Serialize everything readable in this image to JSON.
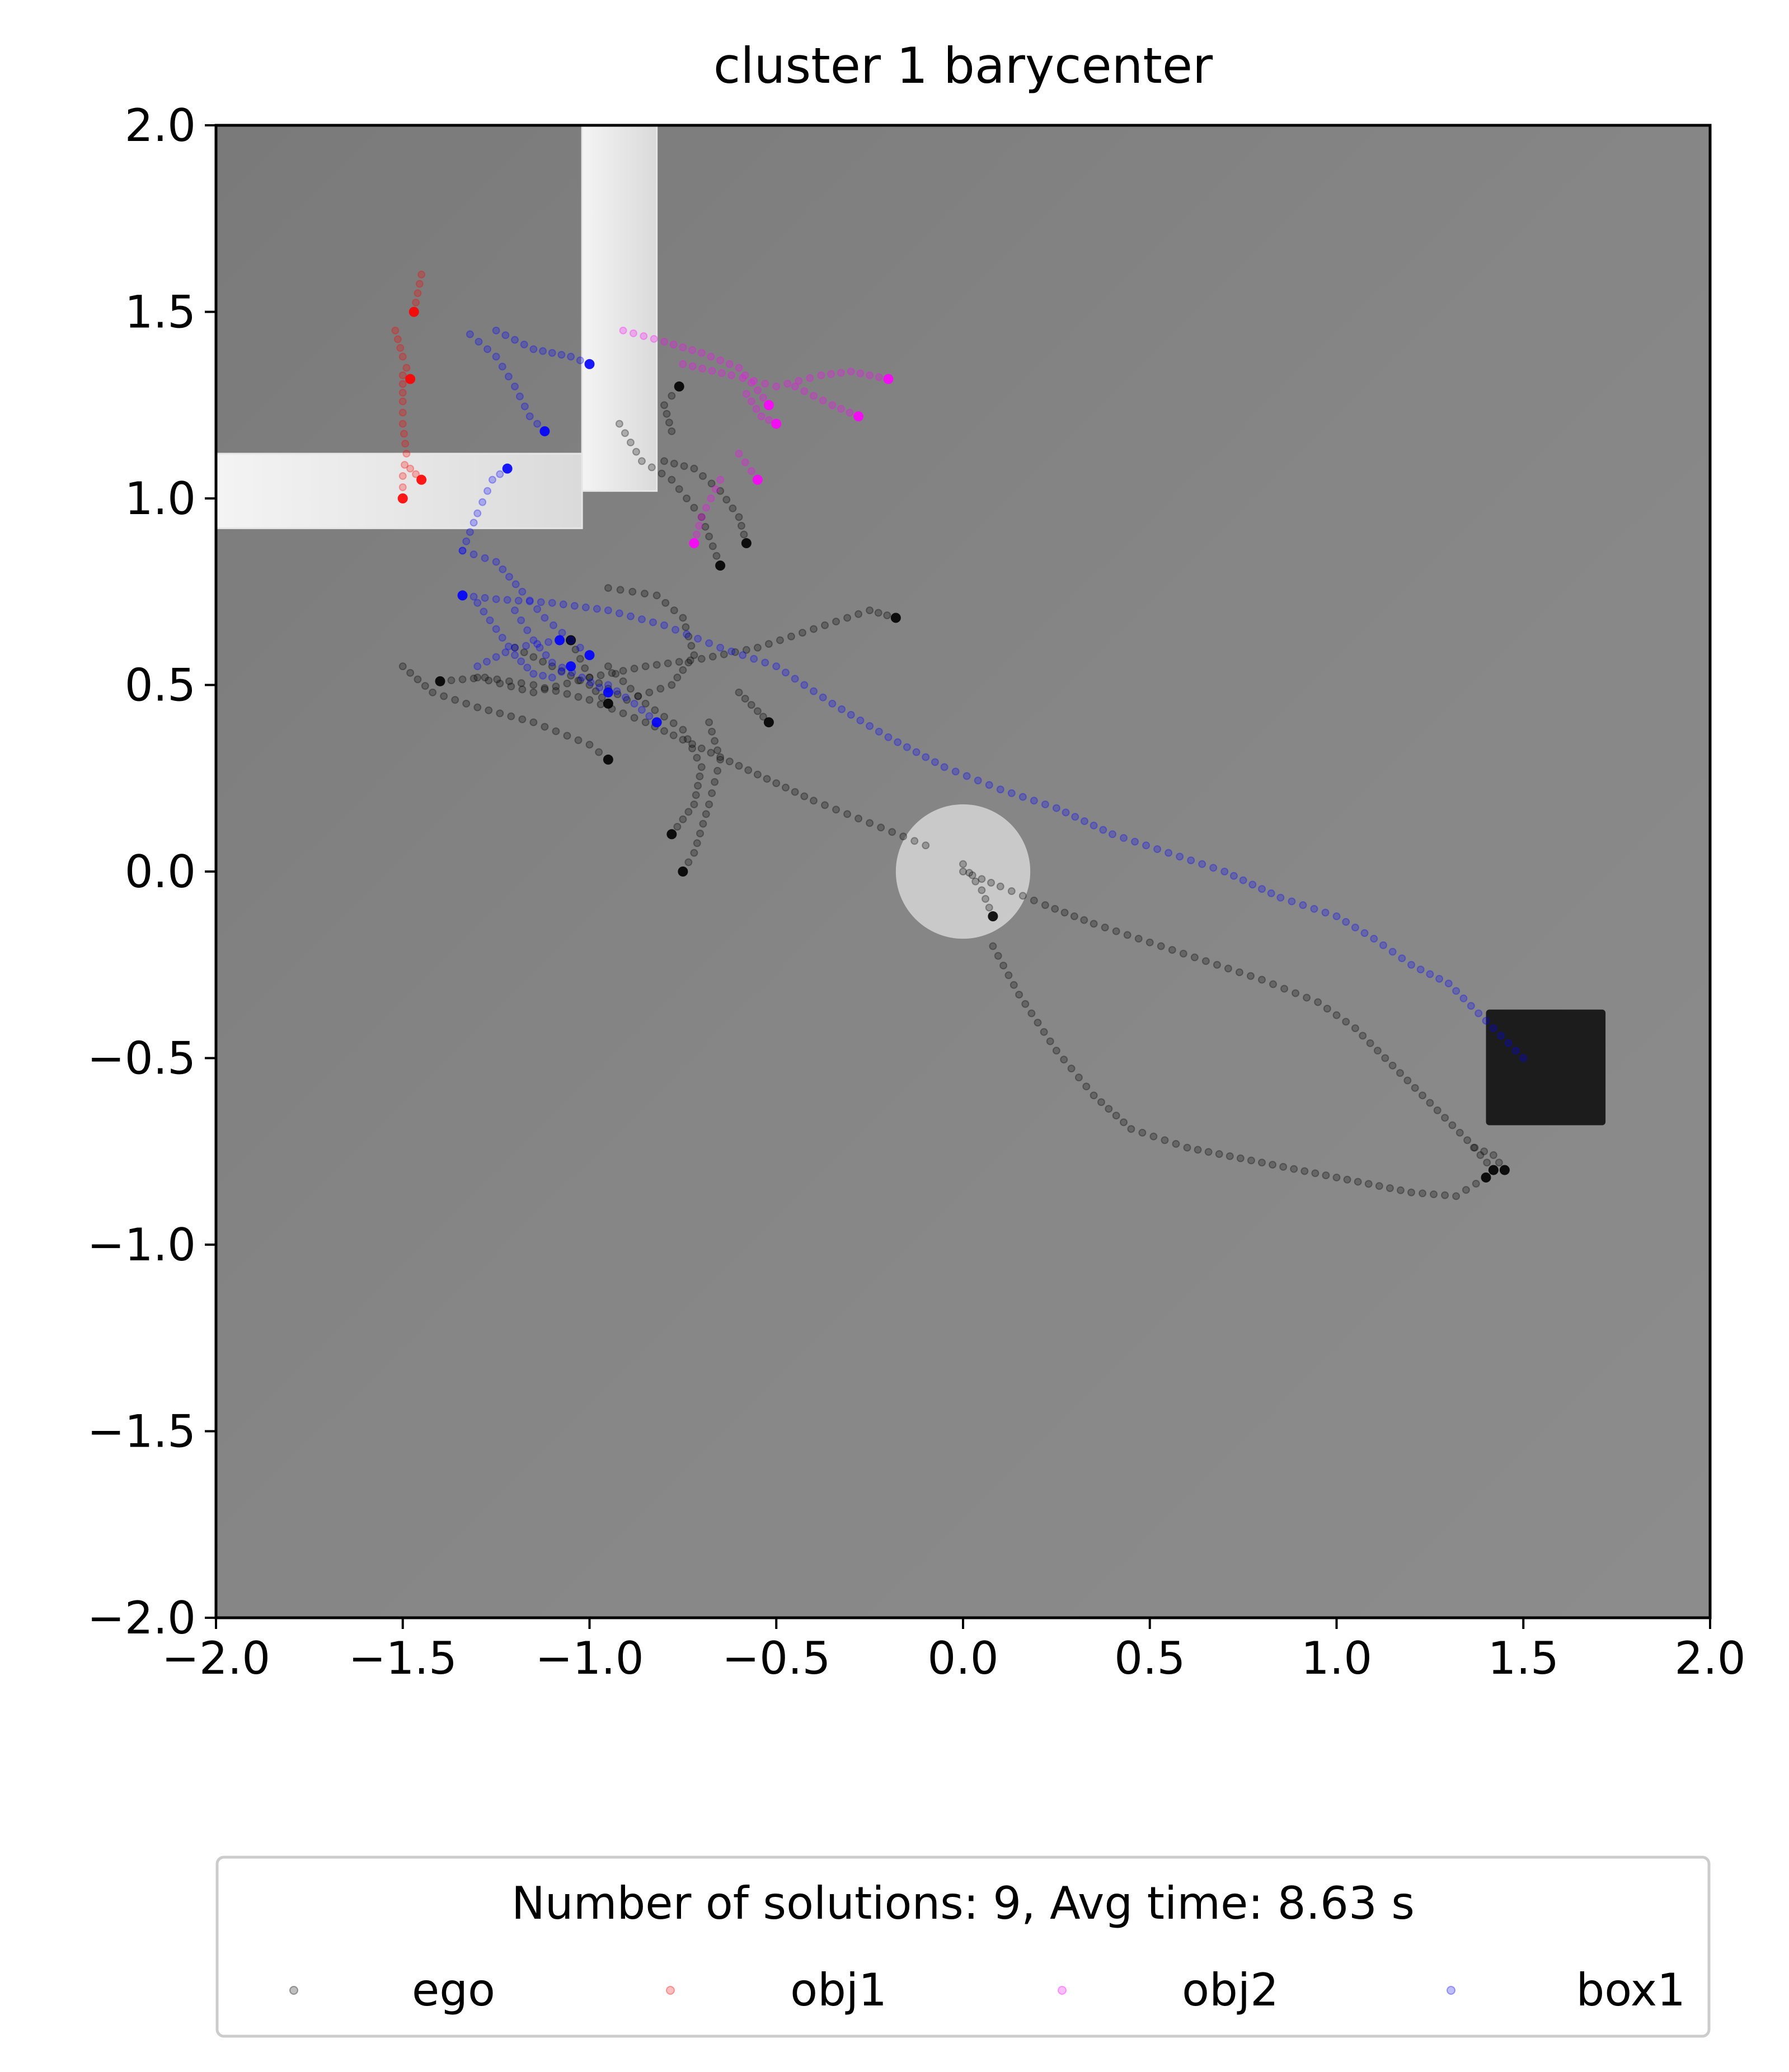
{
  "chart_data": {
    "type": "scatter",
    "title": "cluster 1 barycenter",
    "xlabel": "",
    "ylabel": "",
    "xlim": [
      -2.0,
      2.0
    ],
    "ylim": [
      -2.0,
      2.0
    ],
    "xticks": [
      -2.0,
      -1.5,
      -1.0,
      -0.5,
      0.0,
      0.5,
      1.0,
      1.5,
      2.0
    ],
    "yticks": [
      -2.0,
      -1.5,
      -1.0,
      -0.5,
      0.0,
      0.5,
      1.0,
      1.5,
      2.0
    ],
    "xtick_labels": [
      "−2.0",
      "−1.5",
      "−1.0",
      "−0.5",
      "0.0",
      "0.5",
      "1.0",
      "1.5",
      "2.0"
    ],
    "ytick_labels": [
      "−2.0",
      "−1.5",
      "−1.0",
      "−0.5",
      "0.0",
      "0.5",
      "1.0",
      "1.5",
      "2.0"
    ],
    "grid": false,
    "legend": {
      "title": "Number of solutions: 9, Avg time: 8.63 s",
      "placement": "below plot",
      "entries": [
        "ego",
        "obj1",
        "obj2",
        "box1"
      ]
    },
    "background": {
      "walls": [
        {
          "x0": -2.0,
          "x1": -1.02,
          "y0": 0.92,
          "y1": 1.12
        },
        {
          "x0": -1.02,
          "x1": -0.82,
          "y0": 1.02,
          "y1": 2.0
        }
      ],
      "goal_disc": {
        "cx": 0.0,
        "cy": 0.0,
        "r": 0.18
      },
      "target_box": {
        "x0": 1.4,
        "x1": 1.72,
        "y0": -0.68,
        "y1": -0.37
      }
    },
    "series": [
      {
        "name": "ego",
        "color": "#000000",
        "paths": [
          [
            [
              0.0,
              0.0
            ],
            [
              0.1,
              -0.04
            ],
            [
              0.22,
              -0.09
            ],
            [
              0.35,
              -0.14
            ],
            [
              0.5,
              -0.19
            ],
            [
              0.65,
              -0.24
            ],
            [
              0.8,
              -0.29
            ],
            [
              0.95,
              -0.35
            ],
            [
              1.05,
              -0.42
            ],
            [
              1.15,
              -0.52
            ],
            [
              1.25,
              -0.62
            ],
            [
              1.35,
              -0.72
            ],
            [
              1.42,
              -0.8
            ]
          ],
          [
            [
              0.08,
              -0.2
            ],
            [
              0.15,
              -0.33
            ],
            [
              0.25,
              -0.48
            ],
            [
              0.35,
              -0.6
            ],
            [
              0.45,
              -0.69
            ],
            [
              0.6,
              -0.74
            ],
            [
              0.8,
              -0.78
            ],
            [
              1.0,
              -0.82
            ],
            [
              1.2,
              -0.86
            ],
            [
              1.32,
              -0.87
            ],
            [
              1.4,
              -0.82
            ]
          ],
          [
            [
              -0.1,
              0.07
            ],
            [
              -0.25,
              0.13
            ],
            [
              -0.4,
              0.19
            ],
            [
              -0.55,
              0.26
            ],
            [
              -0.7,
              0.33
            ],
            [
              -0.85,
              0.4
            ],
            [
              -1.0,
              0.46
            ],
            [
              -1.15,
              0.5
            ],
            [
              -1.28,
              0.52
            ],
            [
              -1.4,
              0.51
            ]
          ],
          [
            [
              -1.5,
              0.55
            ],
            [
              -1.42,
              0.48
            ],
            [
              -1.3,
              0.44
            ],
            [
              -1.15,
              0.4
            ],
            [
              -1.0,
              0.34
            ],
            [
              -0.95,
              0.3
            ]
          ],
          [
            [
              -1.3,
              0.52
            ],
            [
              -1.15,
              0.48
            ],
            [
              -1.0,
              0.52
            ],
            [
              -0.85,
              0.55
            ],
            [
              -0.7,
              0.57
            ],
            [
              -0.55,
              0.6
            ],
            [
              -0.4,
              0.65
            ],
            [
              -0.25,
              0.7
            ],
            [
              -0.18,
              0.68
            ]
          ],
          [
            [
              -0.95,
              0.76
            ],
            [
              -0.82,
              0.74
            ],
            [
              -0.75,
              0.68
            ],
            [
              -0.72,
              0.58
            ],
            [
              -0.78,
              0.5
            ],
            [
              -0.9,
              0.46
            ],
            [
              -1.0,
              0.52
            ],
            [
              -1.05,
              0.62
            ]
          ],
          [
            [
              -0.92,
              1.2
            ],
            [
              -0.86,
              1.1
            ],
            [
              -0.78,
              1.05
            ],
            [
              -0.7,
              0.95
            ],
            [
              -0.65,
              0.82
            ]
          ],
          [
            [
              -0.8,
              1.1
            ],
            [
              -0.72,
              1.08
            ],
            [
              -0.65,
              1.02
            ],
            [
              -0.6,
              0.95
            ],
            [
              -0.58,
              0.88
            ]
          ],
          [
            [
              -0.95,
              0.55
            ],
            [
              -0.85,
              0.45
            ],
            [
              -0.75,
              0.38
            ],
            [
              -0.7,
              0.28
            ],
            [
              -0.72,
              0.18
            ],
            [
              -0.78,
              0.1
            ]
          ],
          [
            [
              -0.68,
              0.4
            ],
            [
              -0.65,
              0.3
            ],
            [
              -0.68,
              0.18
            ],
            [
              -0.72,
              0.05
            ],
            [
              -0.75,
              0.0
            ]
          ],
          [
            [
              -1.2,
              0.6
            ],
            [
              -1.1,
              0.55
            ],
            [
              -1.0,
              0.5
            ],
            [
              -0.95,
              0.45
            ]
          ],
          [
            [
              -0.6,
              0.48
            ],
            [
              -0.55,
              0.43
            ],
            [
              -0.52,
              0.4
            ]
          ],
          [
            [
              0.0,
              0.02
            ],
            [
              0.05,
              -0.05
            ],
            [
              0.08,
              -0.12
            ]
          ],
          [
            [
              1.37,
              -0.74
            ],
            [
              1.42,
              -0.76
            ],
            [
              1.45,
              -0.8
            ]
          ],
          [
            [
              -0.78,
              1.18
            ],
            [
              -0.8,
              1.25
            ],
            [
              -0.76,
              1.3
            ]
          ]
        ]
      },
      {
        "name": "obj1",
        "color": "#ff0000",
        "paths": [
          [
            [
              -1.5,
              1.33
            ],
            [
              -1.5,
              1.26
            ],
            [
              -1.5,
              1.2
            ],
            [
              -1.49,
              1.12
            ],
            [
              -1.5,
              1.06
            ],
            [
              -1.5,
              1.0
            ]
          ],
          [
            [
              -1.52,
              1.45
            ],
            [
              -1.5,
              1.38
            ],
            [
              -1.48,
              1.32
            ]
          ],
          [
            [
              -1.45,
              1.6
            ],
            [
              -1.47,
              1.5
            ]
          ],
          [
            [
              -1.48,
              1.08
            ],
            [
              -1.45,
              1.05
            ]
          ]
        ]
      },
      {
        "name": "obj2",
        "color": "#ff00ff",
        "paths": [
          [
            [
              -0.91,
              1.45
            ],
            [
              -0.8,
              1.42
            ],
            [
              -0.7,
              1.39
            ],
            [
              -0.6,
              1.35
            ],
            [
              -0.55,
              1.29
            ],
            [
              -0.52,
              1.25
            ]
          ],
          [
            [
              -0.75,
              1.36
            ],
            [
              -0.62,
              1.33
            ],
            [
              -0.5,
              1.3
            ],
            [
              -0.38,
              1.33
            ],
            [
              -0.3,
              1.34
            ],
            [
              -0.2,
              1.32
            ]
          ],
          [
            [
              -0.58,
              1.28
            ],
            [
              -0.54,
              1.22
            ],
            [
              -0.5,
              1.2
            ]
          ],
          [
            [
              -0.65,
              1.05
            ],
            [
              -0.7,
              0.95
            ],
            [
              -0.72,
              0.88
            ]
          ],
          [
            [
              -0.45,
              1.3
            ],
            [
              -0.35,
              1.25
            ],
            [
              -0.28,
              1.22
            ]
          ],
          [
            [
              -0.6,
              1.12
            ],
            [
              -0.55,
              1.05
            ]
          ]
        ]
      },
      {
        "name": "box1",
        "color": "#0000ff",
        "paths": [
          [
            [
              1.5,
              -0.5
            ],
            [
              1.4,
              -0.4
            ],
            [
              1.3,
              -0.3
            ],
            [
              1.2,
              -0.25
            ],
            [
              1.1,
              -0.18
            ],
            [
              1.0,
              -0.12
            ],
            [
              0.85,
              -0.07
            ],
            [
              0.7,
              0.0
            ],
            [
              0.55,
              0.05
            ],
            [
              0.4,
              0.1
            ],
            [
              0.25,
              0.17
            ],
            [
              0.1,
              0.22
            ],
            [
              -0.05,
              0.28
            ],
            [
              -0.2,
              0.36
            ],
            [
              -0.35,
              0.45
            ],
            [
              -0.5,
              0.55
            ],
            [
              -0.65,
              0.6
            ],
            [
              -0.8,
              0.66
            ],
            [
              -0.95,
              0.7
            ],
            [
              -1.1,
              0.72
            ],
            [
              -1.25,
              0.73
            ],
            [
              -1.34,
              0.74
            ]
          ],
          [
            [
              -1.34,
              0.86
            ],
            [
              -1.25,
              0.83
            ],
            [
              -1.18,
              0.75
            ],
            [
              -1.12,
              0.68
            ],
            [
              -1.05,
              0.62
            ],
            [
              -1.0,
              0.58
            ]
          ],
          [
            [
              -1.3,
              0.72
            ],
            [
              -1.25,
              0.65
            ],
            [
              -1.2,
              0.58
            ],
            [
              -1.15,
              0.53
            ],
            [
              -1.1,
              0.52
            ],
            [
              -1.05,
              0.55
            ]
          ],
          [
            [
              -1.2,
              0.7
            ],
            [
              -1.15,
              0.62
            ],
            [
              -1.1,
              0.56
            ],
            [
              -1.02,
              0.52
            ],
            [
              -0.95,
              0.48
            ]
          ],
          [
            [
              -1.34,
              0.86
            ],
            [
              -1.3,
              0.96
            ],
            [
              -1.26,
              1.05
            ],
            [
              -1.22,
              1.08
            ]
          ],
          [
            [
              -1.32,
              1.44
            ],
            [
              -1.25,
              1.38
            ],
            [
              -1.2,
              1.3
            ],
            [
              -1.16,
              1.22
            ],
            [
              -1.12,
              1.18
            ]
          ],
          [
            [
              -1.25,
              1.45
            ],
            [
              -1.15,
              1.4
            ],
            [
              -1.05,
              1.38
            ],
            [
              -1.0,
              1.36
            ]
          ],
          [
            [
              -1.3,
              0.55
            ],
            [
              -1.2,
              0.6
            ],
            [
              -1.08,
              0.62
            ]
          ],
          [
            [
              -0.95,
              0.5
            ],
            [
              -0.88,
              0.45
            ],
            [
              -0.82,
              0.4
            ]
          ]
        ]
      }
    ]
  }
}
